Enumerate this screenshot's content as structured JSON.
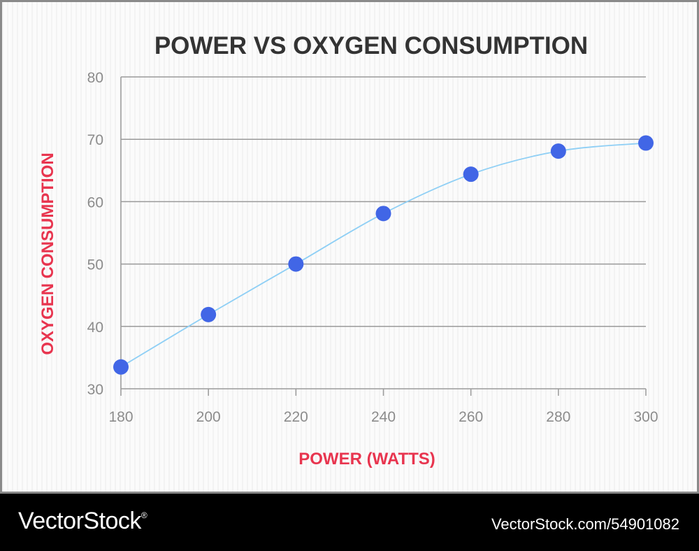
{
  "colors": {
    "title": "#333333",
    "axis_label": "#e8354f",
    "tick_label": "#8c8c8c",
    "grid": "#9a9a9a",
    "line": "#8ecff5",
    "marker": "#4166e6",
    "footer_bg": "#000000",
    "footer_text": "#ffffff"
  },
  "chart_data": {
    "type": "line",
    "title": "POWER VS OXYGEN CONSUMPTION",
    "xlabel": "POWER (WATTS)",
    "ylabel": "OXYGEN CONSUMPTION",
    "xlim": [
      180,
      300
    ],
    "ylim": [
      30,
      80
    ],
    "x_ticks": [
      "180",
      "200",
      "220",
      "240",
      "260",
      "280",
      "300"
    ],
    "y_ticks": [
      "30",
      "40",
      "50",
      "60",
      "70",
      "80"
    ],
    "grid": "horizontal",
    "series": [
      {
        "x": [
          180,
          200,
          220,
          240,
          260,
          280,
          300
        ],
        "values": [
          33.5,
          41.9,
          50,
          58.1,
          64.4,
          68.1,
          69.4
        ]
      }
    ]
  },
  "footer": {
    "brand": "VectorStock",
    "brand_mark": "®",
    "stock_id": "VectorStock.com/54901082"
  }
}
